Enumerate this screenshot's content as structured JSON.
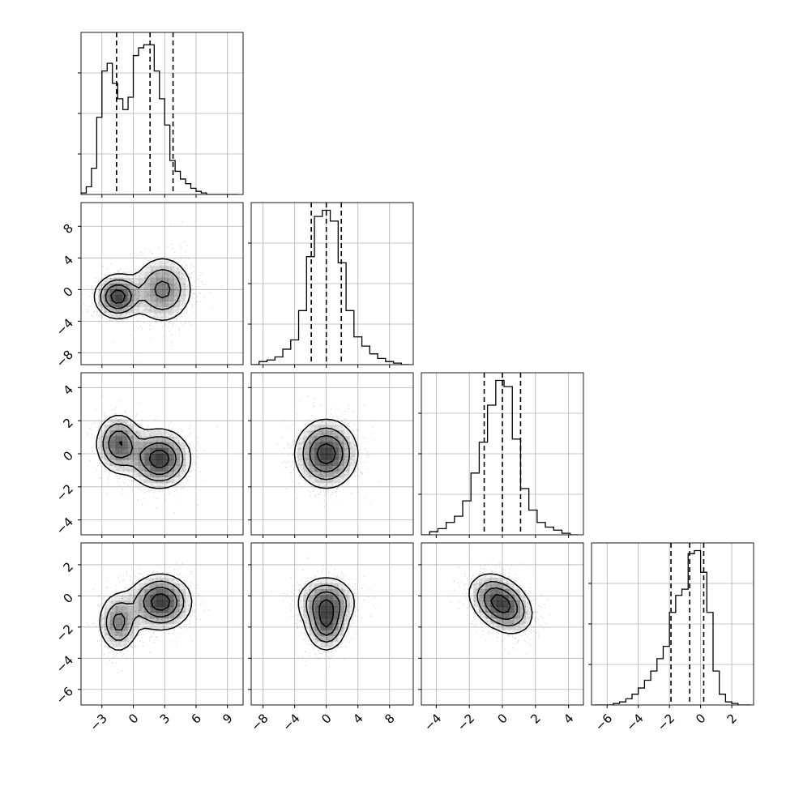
{
  "chart_data": {
    "type": "corner",
    "grid": true,
    "colors": {
      "histogram": "#000000",
      "points": "#8c8c8c",
      "contour": "#000000",
      "density": "#000000"
    },
    "variables": [
      {
        "range": [
          -5,
          10.5
        ],
        "ticks": [
          -3,
          0,
          3,
          6,
          9
        ],
        "tick_labels": [
          "−3",
          "0",
          "3",
          "6",
          "9"
        ],
        "quantiles": [
          -1.6,
          1.6,
          3.8
        ]
      },
      {
        "range": [
          -9.5,
          11
        ],
        "ticks": [
          -8,
          -4,
          0,
          4,
          8
        ],
        "tick_labels": [
          "−8",
          "−4",
          "0",
          "4",
          "8"
        ],
        "quantiles": [
          -1.9,
          0.0,
          1.9
        ]
      },
      {
        "range": [
          -4.9,
          4.9
        ],
        "ticks": [
          -4,
          -2,
          0,
          2,
          4
        ],
        "tick_labels": [
          "−4",
          "−2",
          "0",
          "2",
          "4"
        ],
        "quantiles": [
          -1.1,
          0.0,
          1.1
        ]
      },
      {
        "range": [
          -7,
          3.4
        ],
        "ticks": [
          -6,
          -4,
          -2,
          0,
          2
        ],
        "tick_labels": [
          "−6",
          "−4",
          "−2",
          "0",
          "2"
        ],
        "quantiles": [
          -1.9,
          -0.7,
          0.2
        ]
      }
    ],
    "histograms": [
      {
        "bin_edges": [
          -5,
          -4.5,
          -4,
          -3.5,
          -3,
          -2.5,
          -2,
          -1.5,
          -1,
          -0.5,
          0,
          0.5,
          1,
          1.5,
          2,
          2.5,
          3,
          3.5,
          4,
          4.5,
          5,
          5.5,
          6,
          6.5,
          7,
          7.5,
          8,
          8.5,
          9,
          9.5,
          10
        ],
        "counts": [
          0.01,
          0.05,
          0.17,
          0.5,
          0.8,
          0.85,
          0.72,
          0.62,
          0.55,
          0.63,
          0.9,
          0.95,
          0.97,
          0.97,
          0.8,
          0.62,
          0.45,
          0.22,
          0.15,
          0.1,
          0.07,
          0.04,
          0.02,
          0.01,
          0.0,
          0,
          0,
          0,
          0,
          0
        ]
      },
      {
        "bin_edges": [
          -9.5,
          -8.5,
          -7.5,
          -6.5,
          -5.5,
          -4.5,
          -3.5,
          -2.5,
          -1.5,
          -0.5,
          0.5,
          1.5,
          2.5,
          3.5,
          4.5,
          5.5,
          6.5,
          7.5,
          8.5,
          9.5,
          10.5
        ],
        "counts": [
          0.0,
          0.02,
          0.03,
          0.05,
          0.1,
          0.16,
          0.35,
          0.7,
          0.96,
          1.0,
          0.93,
          0.66,
          0.35,
          0.18,
          0.12,
          0.07,
          0.04,
          0.02,
          0.01,
          0.0
        ]
      },
      {
        "bin_edges": [
          -4.9,
          -4.4,
          -3.9,
          -3.4,
          -2.9,
          -2.4,
          -1.9,
          -1.4,
          -0.9,
          -0.4,
          0.1,
          0.6,
          1.1,
          1.6,
          2.1,
          2.6,
          3.1,
          3.6,
          4.1,
          4.6
        ],
        "counts": [
          0.0,
          0.02,
          0.04,
          0.08,
          0.12,
          0.22,
          0.4,
          0.6,
          0.84,
          1.0,
          0.96,
          0.62,
          0.3,
          0.16,
          0.08,
          0.05,
          0.03,
          0.01,
          0.0
        ]
      },
      {
        "bin_edges": [
          -6.8,
          -6.4,
          -6,
          -5.6,
          -5.2,
          -4.8,
          -4.4,
          -4,
          -3.6,
          -3.2,
          -2.8,
          -2.4,
          -2,
          -1.6,
          -1.2,
          -0.8,
          -0.4,
          0,
          0.4,
          0.8,
          1.2,
          1.6,
          2,
          2.4,
          2.8,
          3.2
        ],
        "counts": [
          0.0,
          0.0,
          0.0,
          0.01,
          0.02,
          0.04,
          0.07,
          0.11,
          0.16,
          0.22,
          0.3,
          0.38,
          0.6,
          0.71,
          0.75,
          0.98,
          1.0,
          0.86,
          0.6,
          0.22,
          0.07,
          0.02,
          0.01,
          0.0,
          0.0
        ]
      }
    ],
    "pairs": [
      {
        "x": 0,
        "y": 1,
        "components": [
          {
            "w": 0.42,
            "mx": -1.5,
            "my": -0.9,
            "sx": 1.1,
            "sy": 1.4,
            "rho": 0.0
          },
          {
            "w": 0.58,
            "mx": 2.8,
            "my": 0.0,
            "sx": 1.5,
            "sy": 2.2,
            "rho": 0.0
          }
        ]
      },
      {
        "x": 0,
        "y": 2,
        "components": [
          {
            "w": 0.38,
            "mx": -1.4,
            "my": 0.6,
            "sx": 1.1,
            "sy": 0.9,
            "rho": 0.0
          },
          {
            "w": 0.62,
            "mx": 2.5,
            "my": -0.3,
            "sx": 1.5,
            "sy": 0.9,
            "rho": 0.0
          }
        ]
      },
      {
        "x": 0,
        "y": 3,
        "components": [
          {
            "w": 0.33,
            "mx": -1.4,
            "my": -1.7,
            "sx": 1.0,
            "sy": 1.0,
            "rho": 0.0
          },
          {
            "w": 0.67,
            "mx": 2.6,
            "my": -0.4,
            "sx": 1.5,
            "sy": 0.9,
            "rho": 0.0
          }
        ]
      },
      {
        "x": 1,
        "y": 2,
        "components": [
          {
            "w": 1.0,
            "mx": 0.0,
            "my": 0.0,
            "sx": 2.0,
            "sy": 1.05,
            "rho": 0.0
          }
        ]
      },
      {
        "x": 1,
        "y": 3,
        "components": [
          {
            "w": 0.6,
            "mx": 0.0,
            "my": -0.4,
            "sx": 1.9,
            "sy": 0.85,
            "rho": 0.0
          },
          {
            "w": 0.4,
            "mx": 0.0,
            "my": -1.9,
            "sx": 1.3,
            "sy": 0.85,
            "rho": 0.0
          }
        ]
      },
      {
        "x": 2,
        "y": 3,
        "components": [
          {
            "w": 1.0,
            "mx": -0.1,
            "my": -0.5,
            "sx": 0.95,
            "sy": 0.95,
            "rho": -0.35
          }
        ]
      }
    ]
  }
}
